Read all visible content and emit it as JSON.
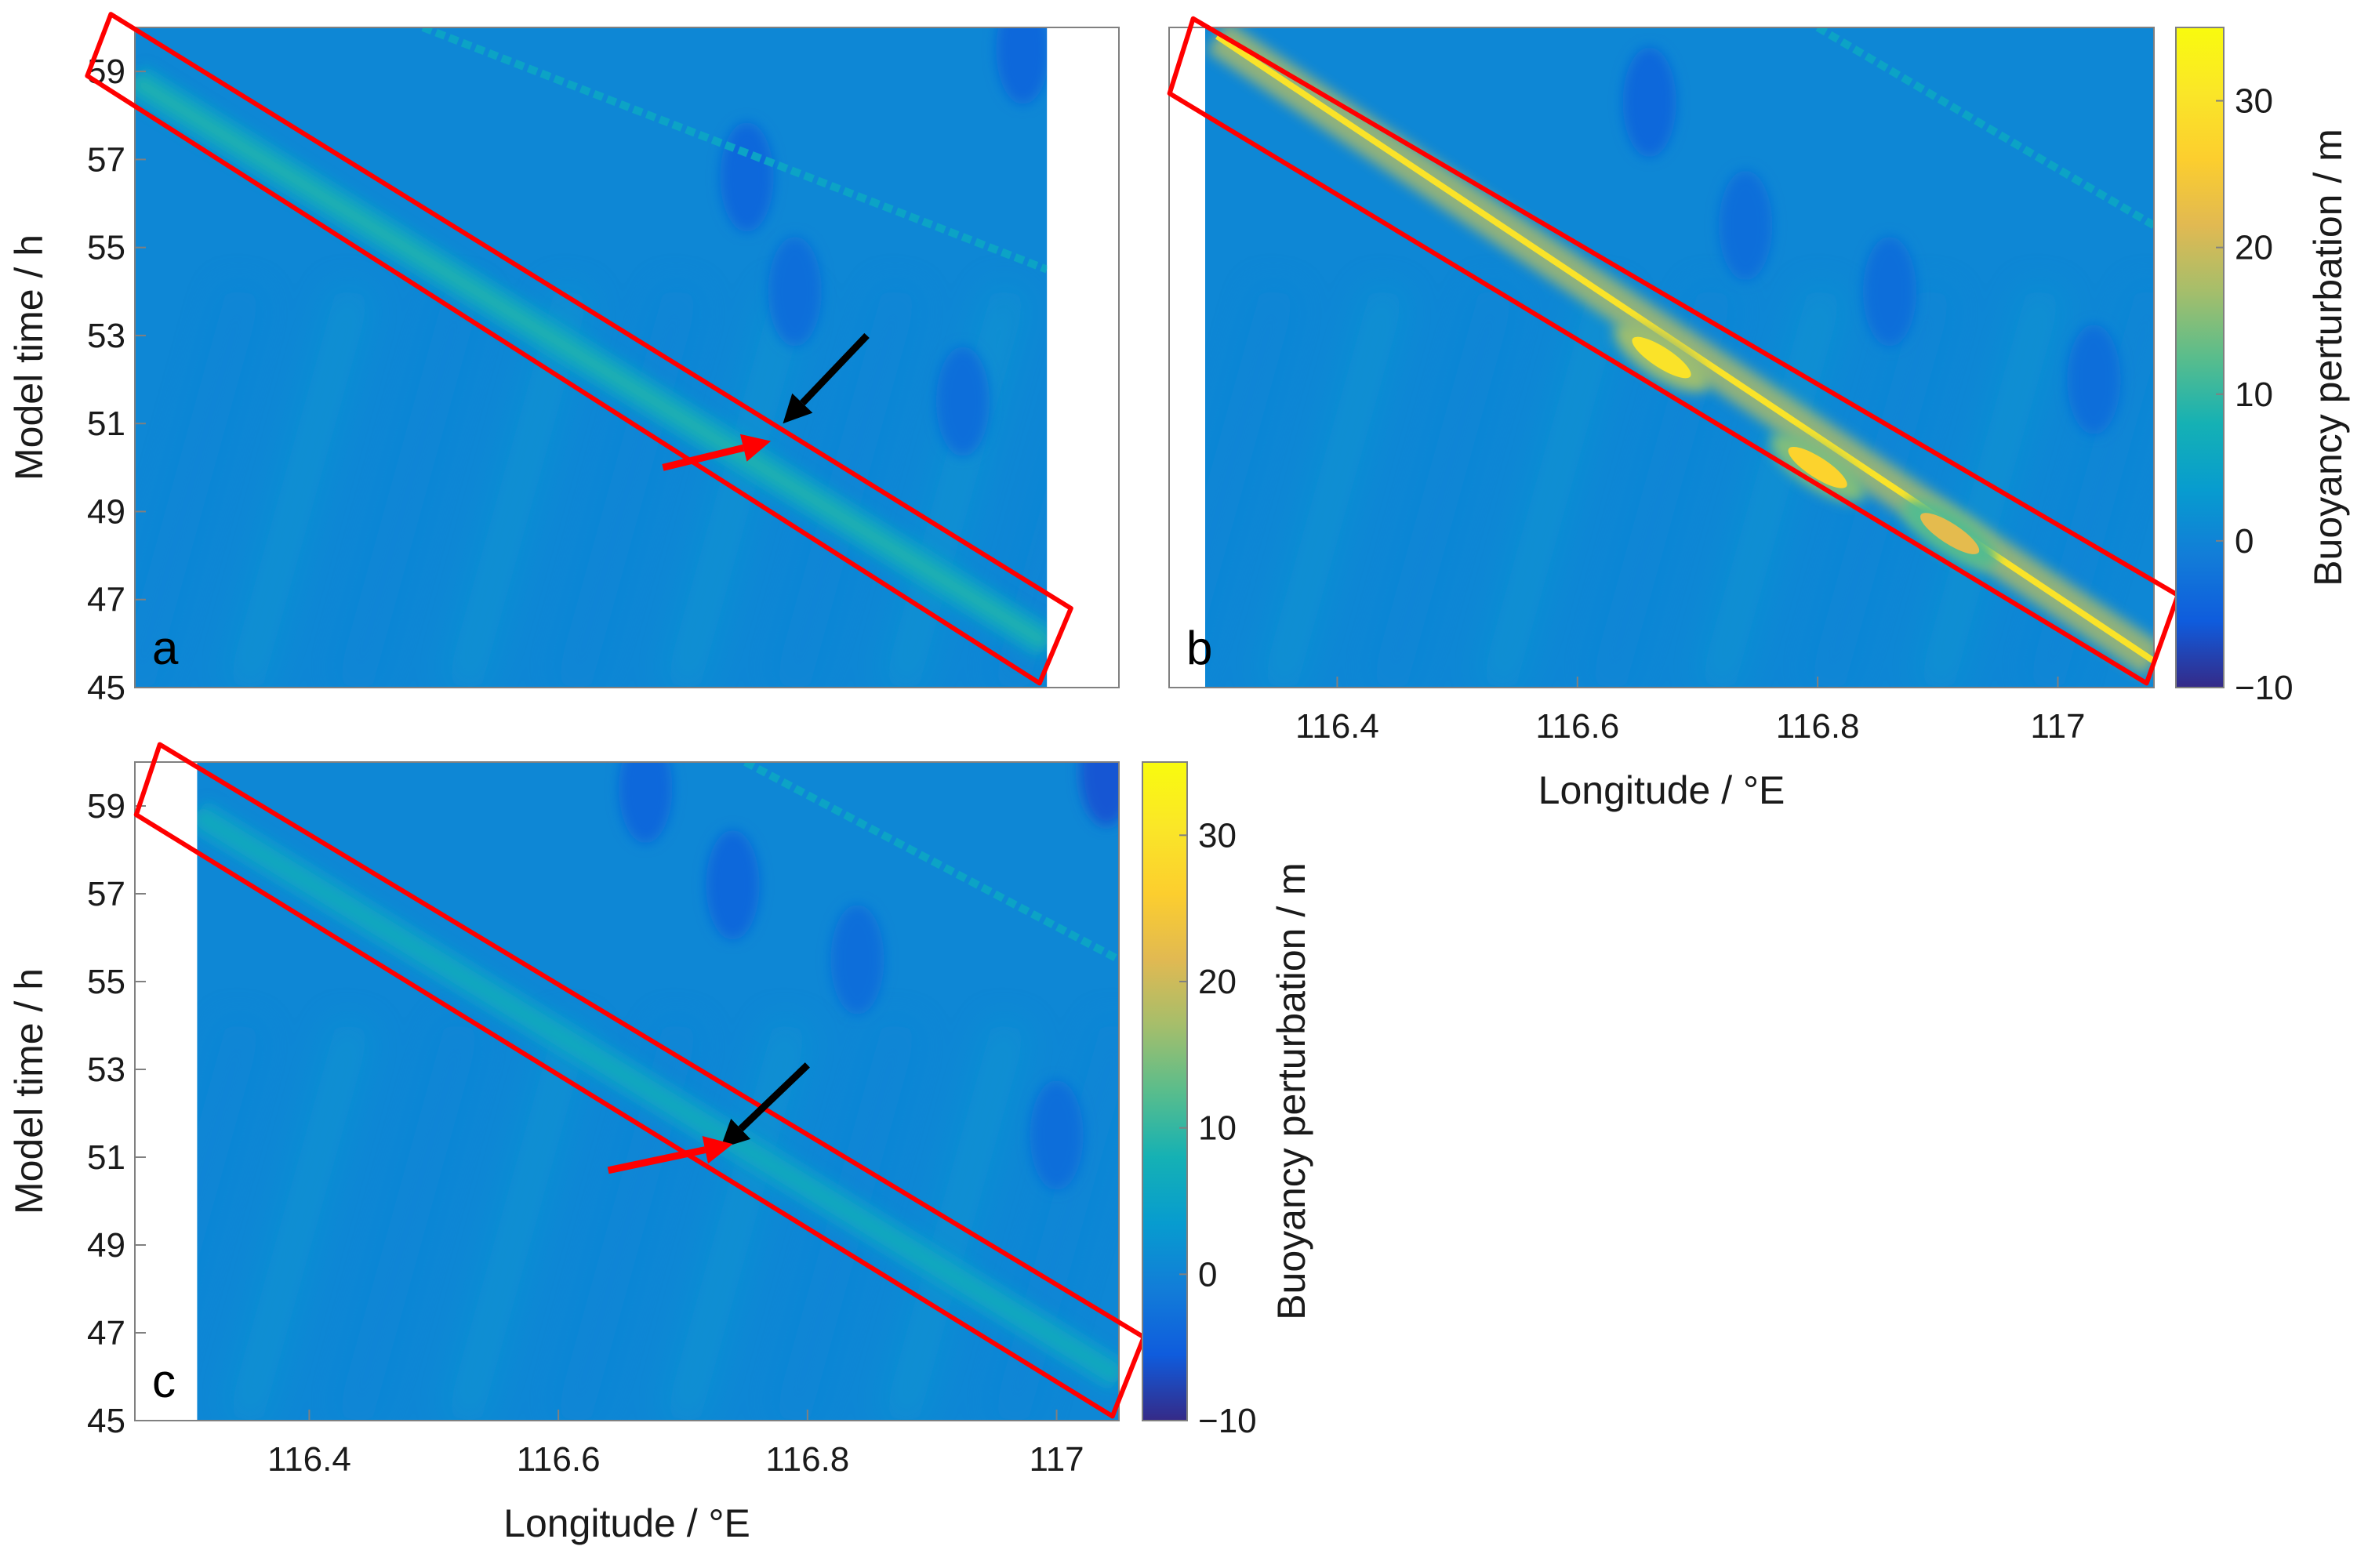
{
  "chart_data": [
    {
      "type": "heatmap",
      "panel_label": "a",
      "xlabel": "",
      "ylabel": "Model time / h",
      "xlim": [
        116.26,
        117.08
      ],
      "ylim": [
        45,
        60
      ],
      "x_ticks": [],
      "y_ticks": [
        45,
        47,
        49,
        51,
        53,
        55,
        57,
        59
      ],
      "valid_x_range": [
        116.26,
        117.02
      ],
      "colorbar": null,
      "crest_line": {
        "start": [
          116.26,
          58.8
        ],
        "end": [
          117.02,
          46.0
        ]
      },
      "crest_peak": 9,
      "other_crests": [
        {
          "start": [
            116.5,
            60.0
          ],
          "end": [
            117.02,
            54.5
          ],
          "value": 5
        }
      ],
      "lows": [
        {
          "x": 116.77,
          "y": 56.6,
          "value": -4
        },
        {
          "x": 116.81,
          "y": 54.0,
          "value": -3
        },
        {
          "x": 116.95,
          "y": 51.5,
          "value": -3
        },
        {
          "x": 117.0,
          "y": 59.5,
          "value": -4
        }
      ],
      "highlight_box": {
        "x_range": [
          116.24,
          117.04
        ],
        "y_top": [
          58.9,
          60.3
        ],
        "y_bottom": [
          45.1,
          46.8
        ],
        "color": "#ff0000"
      },
      "arrows": [
        {
          "color": "#000000",
          "from": [
            116.87,
            53.0
          ],
          "to": [
            116.8,
            51.0
          ]
        },
        {
          "color": "#ff0000",
          "from": [
            116.7,
            50.0
          ],
          "to": [
            116.79,
            50.6
          ]
        }
      ]
    },
    {
      "type": "heatmap",
      "panel_label": "b",
      "xlabel": "Longitude / °E",
      "ylabel": "",
      "xlim": [
        116.26,
        117.08
      ],
      "ylim": [
        45,
        60
      ],
      "x_ticks": [
        116.4,
        116.6,
        116.8,
        117
      ],
      "x_tick_labels": [
        "116.4",
        "116.6",
        "116.8",
        "117"
      ],
      "y_ticks": [],
      "valid_x_range": [
        116.29,
        117.08
      ],
      "colorbar": {
        "label": "Buoyancy perturbation / m",
        "range": [
          -10,
          35
        ],
        "ticks": [
          -10,
          0,
          10,
          20,
          30
        ],
        "tick_labels": [
          "−10",
          "0",
          "10",
          "20",
          "30"
        ],
        "colormap": "parula"
      },
      "crest_line": {
        "start": [
          116.3,
          59.8
        ],
        "end": [
          117.08,
          45.6
        ]
      },
      "crest_peak": 30,
      "crest_hotspots": [
        {
          "x": 116.67,
          "y": 52.5,
          "value": 30
        },
        {
          "x": 116.8,
          "y": 50.0,
          "value": 27
        },
        {
          "x": 116.91,
          "y": 48.5,
          "value": 22
        }
      ],
      "other_crests": [
        {
          "start": [
            116.8,
            60.0
          ],
          "end": [
            117.08,
            55.5
          ],
          "value": 5
        }
      ],
      "lows": [
        {
          "x": 116.66,
          "y": 58.3,
          "value": -4
        },
        {
          "x": 116.74,
          "y": 55.5,
          "value": -3
        },
        {
          "x": 116.86,
          "y": 54.0,
          "value": -3
        },
        {
          "x": 117.03,
          "y": 52.0,
          "value": -3
        }
      ],
      "highlight_box": {
        "x_range": [
          116.28,
          117.1
        ],
        "y_top": [
          58.5,
          60.2
        ],
        "y_bottom": [
          45.1,
          47.1
        ],
        "color": "#ff0000"
      },
      "arrows": []
    },
    {
      "type": "heatmap",
      "panel_label": "c",
      "xlabel": "Longitude / °E",
      "ylabel": "Model time / h",
      "xlim": [
        116.26,
        117.05
      ],
      "ylim": [
        45,
        60
      ],
      "x_ticks": [
        116.4,
        116.6,
        116.8,
        117
      ],
      "x_tick_labels": [
        "116.4",
        "116.6",
        "116.8",
        "117"
      ],
      "y_ticks": [
        45,
        47,
        49,
        51,
        53,
        55,
        57,
        59
      ],
      "valid_x_range": [
        116.31,
        117.05
      ],
      "colorbar": {
        "label": "Buoyancy perturbation / m",
        "range": [
          -10,
          35
        ],
        "ticks": [
          -10,
          0,
          10,
          20,
          30
        ],
        "tick_labels": [
          "−10",
          "0",
          "10",
          "20",
          "30"
        ],
        "colormap": "parula"
      },
      "crest_line": {
        "start": [
          116.31,
          58.8
        ],
        "end": [
          117.05,
          46.0
        ]
      },
      "crest_peak": 7,
      "other_crests": [
        {
          "start": [
            116.75,
            60.0
          ],
          "end": [
            117.05,
            55.5
          ],
          "value": 5
        }
      ],
      "lows": [
        {
          "x": 116.67,
          "y": 59.4,
          "value": -4
        },
        {
          "x": 116.74,
          "y": 57.2,
          "value": -4
        },
        {
          "x": 116.84,
          "y": 55.5,
          "value": -3
        },
        {
          "x": 117.0,
          "y": 51.5,
          "value": -3
        },
        {
          "x": 117.04,
          "y": 59.8,
          "value": -6
        }
      ],
      "highlight_box": {
        "x_range": [
          116.28,
          117.07
        ],
        "y_top": [
          58.8,
          60.4
        ],
        "y_bottom": [
          45.1,
          46.9
        ],
        "color": "#ff0000"
      },
      "arrows": [
        {
          "color": "#000000",
          "from": [
            116.8,
            53.1
          ],
          "to": [
            116.73,
            51.2
          ]
        },
        {
          "color": "#ff0000",
          "from": [
            116.64,
            50.7
          ],
          "to": [
            116.74,
            51.3
          ]
        }
      ]
    }
  ]
}
